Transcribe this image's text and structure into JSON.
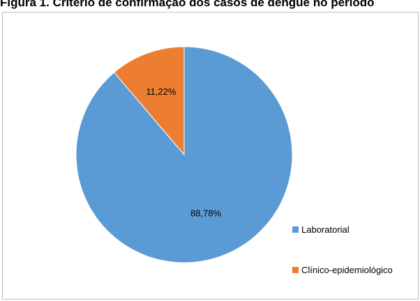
{
  "caption": "Figura 1. Critério de confirmação dos casos de dengue no período",
  "chart_data": {
    "type": "pie",
    "slices": [
      {
        "label": "Laboratorial",
        "value": 88.78,
        "display": "88,78%",
        "color": "#5b9bd5"
      },
      {
        "label": "Clínico-epidemiológico",
        "value": 11.22,
        "display": "11,22%",
        "color": "#ed7d31"
      }
    ],
    "start": "12 o'clock",
    "direction": "clockwise",
    "legend_position": "right"
  }
}
